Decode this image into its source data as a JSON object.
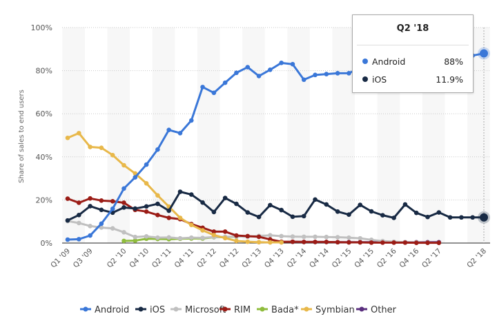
{
  "chart_data": {
    "type": "line",
    "title": "",
    "xlabel": "",
    "ylabel": "Share of sales to end users",
    "ylim": [
      0,
      100
    ],
    "y_ticks": [
      "0%",
      "20%",
      "40%",
      "60%",
      "80%",
      "100%"
    ],
    "y_tick_values": [
      0,
      20,
      40,
      60,
      80,
      100
    ],
    "grid": true,
    "legend_position": "bottom",
    "x": [
      "Q1 '09",
      "Q2 '09",
      "Q3 '09",
      "Q4 '09",
      "Q1 '10",
      "Q2 '10",
      "Q3 '10",
      "Q4 '10",
      "Q1 '11",
      "Q2 '11",
      "Q3 '11",
      "Q4 '11",
      "Q1 '12",
      "Q2 '12",
      "Q3 '12",
      "Q4 '12",
      "Q1 '13",
      "Q2 '13",
      "Q3 '13",
      "Q4 '13",
      "Q1 '14",
      "Q2 '14",
      "Q3 '14",
      "Q4 '14",
      "Q1 '15",
      "Q2 '15",
      "Q3 '15",
      "Q4 '15",
      "Q1 '16",
      "Q2 '16",
      "Q3 '16",
      "Q4 '16",
      "Q1 '17",
      "Q2 '17",
      "Q3 '17",
      "Q4 '17",
      "Q1 '18",
      "Q2 '18"
    ],
    "x_tick_labels": [
      "Q1 '09",
      "Q3 '09",
      "Q2 '10",
      "Q4 '10",
      "Q2 '11",
      "Q4 '11",
      "Q2 '12",
      "Q4 '12",
      "Q2 '13",
      "Q4 '13",
      "Q2 '14",
      "Q4 '14",
      "Q2 '15",
      "Q4 '15",
      "Q2 '16",
      "Q4 '16",
      "Q2 '17",
      "Q2 '18"
    ],
    "series": [
      {
        "name": "Android",
        "color": "#3a77d8",
        "values": [
          1.6,
          1.8,
          3.5,
          9.0,
          15.9,
          25.3,
          30.5,
          36.4,
          43.4,
          52.5,
          51.0,
          56.9,
          72.4,
          69.7,
          74.4,
          79.0,
          81.6,
          77.5,
          80.4,
          83.6,
          83.0,
          75.8,
          78.0,
          78.4,
          78.8,
          78.8,
          81.4,
          80.7,
          84.1,
          85.9,
          84.0,
          82.9,
          85.0,
          85.0,
          86.0,
          85.9,
          87.0,
          88.0
        ]
      },
      {
        "name": "iOS",
        "color": "#182a44",
        "values": [
          10.5,
          13.0,
          17.1,
          15.4,
          14.1,
          16.5,
          16.0,
          17.0,
          18.2,
          15.0,
          23.8,
          22.5,
          18.8,
          14.4,
          20.9,
          18.2,
          14.2,
          12.1,
          17.6,
          15.3,
          12.2,
          12.5,
          20.2,
          17.9,
          14.6,
          13.2,
          17.7,
          14.7,
          12.9,
          11.7,
          17.9,
          14.0,
          12.1,
          14.2,
          11.9,
          11.9,
          11.9,
          11.9
        ]
      },
      {
        "name": "Microsoft",
        "color": "#c0c0c0",
        "values": [
          10.2,
          9.3,
          7.9,
          7.2,
          6.8,
          5.0,
          2.8,
          3.1,
          2.5,
          2.6,
          2.2,
          2.5,
          2.4,
          2.8,
          2.9,
          3.0,
          3.0,
          3.3,
          3.6,
          3.2,
          3.0,
          2.9,
          2.9,
          2.8,
          2.7,
          2.5,
          2.2,
          1.5,
          0.9,
          0.6,
          0.4,
          0.3,
          0.2,
          0.1
        ]
      },
      {
        "name": "RIM",
        "color": "#9b1c16",
        "values": [
          20.6,
          18.7,
          20.7,
          19.7,
          19.4,
          18.7,
          15.4,
          14.6,
          13.0,
          11.7,
          11.1,
          8.8,
          7.1,
          5.3,
          5.3,
          3.5,
          3.2,
          2.9,
          1.7,
          0.6,
          0.6,
          0.5,
          0.5,
          0.5,
          0.4,
          0.3,
          0.3,
          0.2,
          0.2,
          0.2,
          0.2,
          0.1,
          0.1,
          0.1
        ]
      },
      {
        "name": "Bada*",
        "color": "#8fbc3d",
        "values": [
          null,
          null,
          null,
          null,
          null,
          1.0,
          1.1,
          2.0,
          1.9,
          1.8,
          2.0,
          2.1,
          2.1,
          2.7,
          2.8,
          2.9
        ]
      },
      {
        "name": "Symbian",
        "color": "#e8b84a",
        "values": [
          48.8,
          51.0,
          44.6,
          44.2,
          40.8,
          36.1,
          32.3,
          27.7,
          22.1,
          16.9,
          11.7,
          8.4,
          5.9,
          3.7,
          2.3,
          1.0,
          0.6,
          0.4,
          0.3,
          0.3
        ]
      },
      {
        "name": "Other",
        "color": "#5a2f7e",
        "values": [
          null,
          null,
          null,
          null,
          null,
          null,
          null,
          null,
          null,
          null,
          null,
          null,
          null,
          null,
          null,
          null,
          null,
          null,
          null,
          null,
          0.6,
          0.5,
          0.5,
          0.5,
          0.4,
          0.4,
          0.4,
          0.4,
          0.4,
          0.4,
          0.4,
          0.4,
          0.4,
          0.4
        ]
      }
    ],
    "highlight": {
      "x": "Q2 '18",
      "series": [
        "Android",
        "iOS"
      ]
    }
  },
  "tooltip": {
    "title": "Q2 '18",
    "rows": [
      {
        "label": "Android",
        "value": "88%",
        "color": "#3a77d8"
      },
      {
        "label": "iOS",
        "value": "11.9%",
        "color": "#182a44"
      }
    ]
  }
}
